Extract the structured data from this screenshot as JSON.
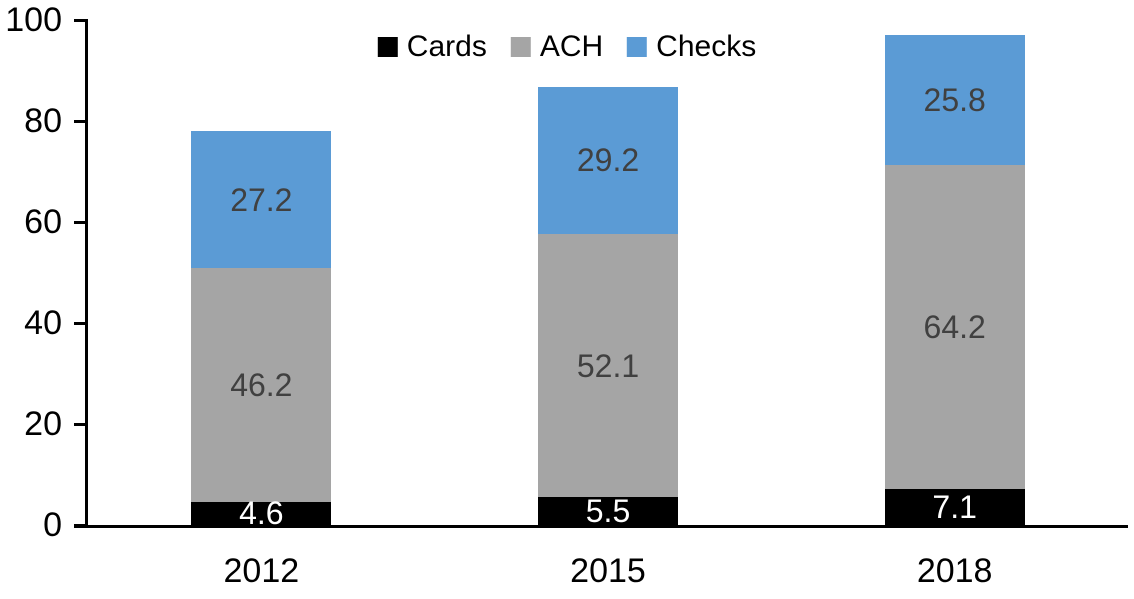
{
  "chart_data": {
    "type": "bar",
    "stacked": true,
    "title": "",
    "xlabel": "",
    "ylabel": "",
    "categories": [
      "2012",
      "2015",
      "2018"
    ],
    "series": [
      {
        "name": "Cards",
        "values": [
          4.6,
          5.5,
          7.1
        ],
        "color": "#000000",
        "label_color": "#ffffff"
      },
      {
        "name": "ACH",
        "values": [
          46.2,
          52.1,
          64.2
        ],
        "color": "#a5a5a5",
        "label_color": "#404040"
      },
      {
        "name": "Checks",
        "values": [
          27.2,
          29.2,
          25.8
        ],
        "color": "#5b9bd5",
        "label_color": "#404040"
      }
    ],
    "totals": [
      78.0,
      86.8,
      97.1
    ],
    "ylim": [
      0,
      100
    ],
    "yticks": [
      0,
      20,
      40,
      60,
      80,
      100
    ],
    "legend_position": "top",
    "grid": false,
    "axis_color": "#000000"
  }
}
